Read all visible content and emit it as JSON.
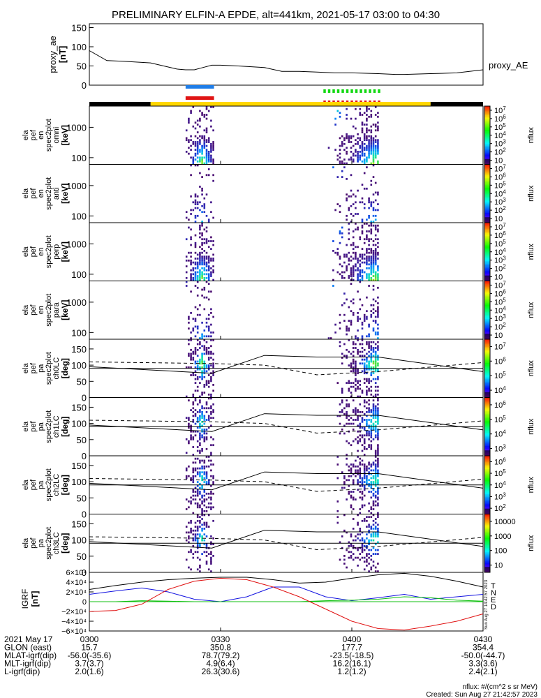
{
  "title": "PRELIMINARY ELFIN-A EPDE, alt=441km, 2021-05-17 03:00 to 04:30",
  "colors": {
    "blue_bar": "#1e7de8",
    "red_bar": "#e01414",
    "green_bar": "#11d811",
    "orbit_yellow": "#ffd700",
    "orbit_black": "#000000",
    "flux_low": "#4b0a6b",
    "flux_mid": "#00a0ff",
    "flux_high": "#ffee00"
  },
  "top_panel": {
    "ylabel": "proxy_ae",
    "yunit": "[nT]",
    "legend": "proxy_AE"
  },
  "spec_panels": [
    {
      "ylabel": [
        "ela",
        "pef",
        "en",
        "spec2plot",
        "omni"
      ],
      "yunit": "[keV]",
      "cbar_label": "nflux"
    },
    {
      "ylabel": [
        "ela",
        "pef",
        "en",
        "spec2plot",
        "anti"
      ],
      "yunit": "[keV]",
      "cbar_label": "nflux"
    },
    {
      "ylabel": [
        "ela",
        "pef",
        "en",
        "spec2plot",
        "perp"
      ],
      "yunit": "[keV]",
      "cbar_label": "nflux"
    },
    {
      "ylabel": [
        "ela",
        "pef",
        "en",
        "spec2plot",
        "para"
      ],
      "yunit": "[keV]",
      "cbar_label": "nflux"
    },
    {
      "ylabel": [
        "ela",
        "pef",
        "pa",
        "spec2plot",
        "ch0LC"
      ],
      "yunit": "[deg]",
      "cbar_label": "nflux"
    },
    {
      "ylabel": [
        "ela",
        "pef",
        "pa",
        "spec2plot",
        "ch1LC"
      ],
      "yunit": "[deg]",
      "cbar_label": "nflux"
    },
    {
      "ylabel": [
        "ela",
        "pef",
        "pa",
        "spec2plot",
        "ch2LC"
      ],
      "yunit": "[deg]",
      "cbar_label": "nflux"
    },
    {
      "ylabel": [
        "ela",
        "pef",
        "pa",
        "spec2plot",
        "ch3LC"
      ],
      "yunit": "[deg]",
      "cbar_label": "nflux"
    }
  ],
  "igrf_panel": {
    "ylabel": "IGRF",
    "yunit": "[nT]",
    "legend": [
      {
        "label": "T",
        "color": "#000000"
      },
      {
        "label": "N",
        "color": "#1010e0"
      },
      {
        "label": "E",
        "color": "#10c010"
      },
      {
        "label": "D",
        "color": "#e01010"
      }
    ],
    "side_text": "Sun Aug 27 14:42:57 2023"
  },
  "ephem": {
    "rows": [
      {
        "label": "2021 May 17",
        "values": [
          "0300",
          "0330",
          "0400",
          "0430"
        ]
      },
      {
        "label": "GLON (east)",
        "values": [
          "15.7",
          "350.8",
          "177.7",
          "354.4"
        ]
      },
      {
        "label": "MLAT-igrf(dip)",
        "values": [
          "-56.0(-35.6)",
          "78.7(79.2)",
          "-23.5(-18.5)",
          "-50.0(-44.7)"
        ]
      },
      {
        "label": "MLT-igrf(dip)",
        "values": [
          "3.7(3.7)",
          "4.9(6.4)",
          "16.2(16.1)",
          "3.3(3.6)"
        ]
      },
      {
        "label": "L-igrf(dip)",
        "values": [
          "2.0(1.6)",
          "26.3(30.6)",
          "1.2(1.2)",
          "2.4(2.1)"
        ]
      }
    ]
  },
  "footer": {
    "units": "nflux: #/(cm^2 s sr MeV)",
    "created": "Created: Sun Aug 27 21:42:57 2023"
  },
  "chart_data": {
    "type": "heatmap",
    "title": "PRELIMINARY ELFIN-A EPDE, alt=441km, 2021-05-17 03:00 to 04:30",
    "x_ticks": [
      "0300",
      "0330",
      "0400",
      "0430"
    ],
    "x_range_minutes": [
      0,
      90
    ],
    "proxy_ae": {
      "ylim": [
        0,
        160
      ],
      "yticks": [
        "0",
        "50",
        "100",
        "150"
      ],
      "x_minutes": [
        0,
        4,
        8,
        14,
        20,
        22,
        24,
        26,
        28,
        30,
        34,
        40,
        44,
        48,
        52,
        56,
        60,
        66,
        70,
        72,
        78,
        84,
        90
      ],
      "values": [
        90,
        64,
        62,
        58,
        42,
        40,
        40,
        46,
        52,
        52,
        50,
        46,
        36,
        36,
        34,
        32,
        32,
        30,
        28,
        28,
        30,
        32,
        40
      ]
    },
    "energy_axis": {
      "scale": "log",
      "ylim": [
        60,
        5000
      ],
      "yticks": [
        "100",
        "1000"
      ]
    },
    "pitch_axis": {
      "ylim": [
        0,
        180
      ],
      "yticks": [
        "0",
        "50",
        "100",
        "150"
      ]
    },
    "colorbars": [
      {
        "scale": "log",
        "ticks": [
          "10",
          "10^2",
          "10^3",
          "10^4",
          "10^5",
          "10^6",
          "10^7"
        ]
      },
      {
        "scale": "log",
        "ticks": [
          "10",
          "10^2",
          "10^3",
          "10^4",
          "10^5",
          "10^6",
          "10^7"
        ]
      },
      {
        "scale": "log",
        "ticks": [
          "10",
          "10^2",
          "10^3",
          "10^4",
          "10^5",
          "10^6",
          "10^7"
        ]
      },
      {
        "scale": "log",
        "ticks": [
          "10",
          "10^2",
          "10^3",
          "10^4",
          "10^5",
          "10^6",
          "10^7"
        ]
      },
      {
        "scale": "log",
        "ticks": [
          "10^4",
          "10^5",
          "10^6",
          "10^7"
        ]
      },
      {
        "scale": "log",
        "ticks": [
          "10^3",
          "10^4",
          "10^5",
          "10^6"
        ]
      },
      {
        "scale": "log",
        "ticks": [
          "10^2",
          "10^3",
          "10^4",
          "10^5",
          "10^6"
        ]
      },
      {
        "scale": "log",
        "ticks": [
          "10",
          "100",
          "1000",
          "10000"
        ]
      }
    ],
    "orbit_bar": [
      {
        "x_start": 0,
        "x_end": 14,
        "color": "black"
      },
      {
        "x_start": 14,
        "x_end": 78,
        "color": "yellow"
      },
      {
        "x_start": 78,
        "x_end": 90,
        "color": "black"
      }
    ],
    "science_zones": [
      {
        "x_start": 22.0,
        "x_end": 28.5,
        "colors": [
          "blue",
          "red"
        ],
        "style": "solid"
      },
      {
        "x_start": 53.5,
        "x_end": 66.5,
        "colors": [
          "green",
          "red"
        ],
        "style": "dotted"
      }
    ],
    "flux_bursts": [
      {
        "x_start": 22.0,
        "x_end": 28.5,
        "peak_minute": 25.5
      },
      {
        "x_start": 53.5,
        "x_end": 66.5,
        "peak_minute": 65.0
      }
    ],
    "loss_cone": {
      "x_minutes": [
        0,
        28,
        40,
        52,
        66,
        90
      ],
      "solid": [
        95,
        75,
        130,
        125,
        125,
        80
      ],
      "dashed": [
        110,
        105,
        100,
        70,
        80,
        108
      ],
      "reference_line": 90
    },
    "igrf": {
      "ylim": [
        -60000,
        60000
      ],
      "yticks": [
        "6×10⁴",
        "4×10⁴",
        "2×10⁴",
        "0",
        "−2×10⁴",
        "−4×10⁴",
        "−6×10⁴"
      ],
      "x_minutes": [
        0,
        6,
        12,
        18,
        24,
        30,
        36,
        42,
        48,
        54,
        60,
        66,
        72,
        78,
        84,
        90
      ],
      "T": [
        25000,
        33000,
        40000,
        45000,
        48000,
        50000,
        50000,
        45000,
        38000,
        40000,
        48000,
        55000,
        58000,
        52000,
        42000,
        30000
      ],
      "N": [
        15000,
        22000,
        28000,
        20000,
        5000,
        0,
        10000,
        30000,
        30000,
        10000,
        2000,
        8000,
        15000,
        5000,
        10000,
        15000
      ],
      "E": [
        0,
        0,
        2000,
        1000,
        0,
        0,
        0,
        0,
        0,
        2000,
        3000,
        5000,
        10000,
        8000,
        3000,
        1000
      ],
      "D": [
        -20000,
        -18000,
        -5000,
        25000,
        42000,
        48000,
        45000,
        30000,
        10000,
        -15000,
        -40000,
        -55000,
        -58000,
        -50000,
        -40000,
        -25000
      ]
    }
  }
}
